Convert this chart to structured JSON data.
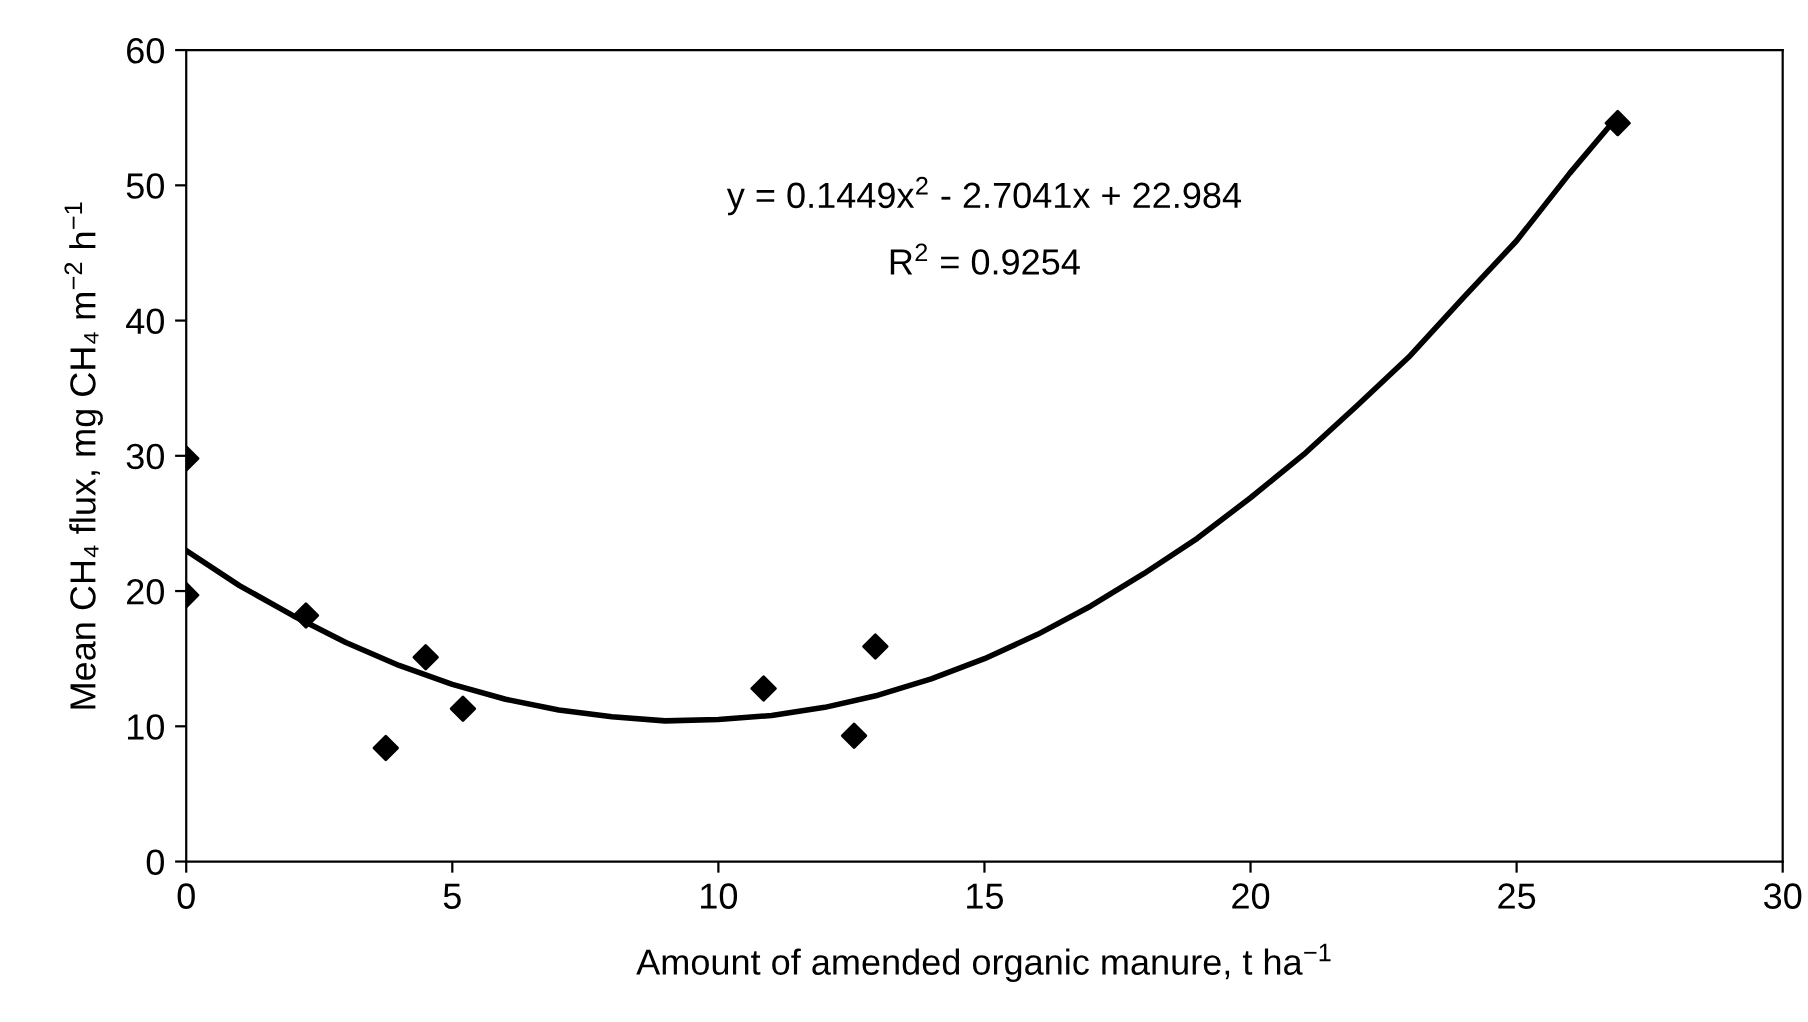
{
  "chart_data": {
    "type": "scatter",
    "xlabel": "Amount of amended organic manure, t ha$^{−1}$",
    "ylabel": "Mean CH₄ flux, mg CH₄ m$^{−2}$ h$^{−1}$",
    "annotations": [
      "y = 0.1449x$^{2}$ - 2.7041x + 22.984",
      "R$^{2}$ = 0.9254"
    ],
    "xlim": [
      0,
      30
    ],
    "ylim": [
      0,
      60
    ],
    "xticks": [
      0,
      5,
      10,
      15,
      20,
      25,
      30
    ],
    "yticks": [
      0,
      10,
      20,
      30,
      40,
      50,
      60
    ],
    "grid": false,
    "legend": false,
    "marker": "diamond",
    "series": [
      {
        "color": "#000000",
        "x": [
          0,
          0,
          2.25,
          3.75,
          4.5,
          5.2,
          10.85,
          12.55,
          12.95,
          26.9
        ],
        "values": [
          29.8,
          19.7,
          18.2,
          8.4,
          15.1,
          11.3,
          12.8,
          9.3,
          15.9,
          54.6
        ]
      },
      {
        "type": "line",
        "color": "#000000",
        "marker": "none",
        "line_style": "solid",
        "x": [
          0,
          1,
          2,
          3,
          4,
          5,
          6,
          7,
          8,
          9,
          10,
          11,
          12,
          13,
          14,
          15,
          16,
          17,
          18,
          19,
          20,
          21,
          22,
          23,
          24,
          25,
          26,
          26.9
        ],
        "values": [
          23.0,
          20.4,
          18.2,
          16.2,
          14.5,
          13.1,
          12.0,
          11.2,
          10.7,
          10.4,
          10.5,
          10.8,
          11.4,
          12.3,
          13.5,
          15.0,
          16.8,
          18.9,
          21.3,
          23.9,
          26.9,
          30.1,
          33.7,
          37.4,
          41.7,
          45.9,
          50.9,
          55.1
        ]
      }
    ]
  }
}
